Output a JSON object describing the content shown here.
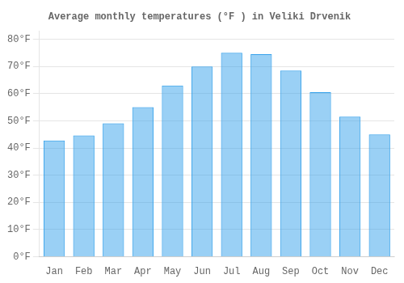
{
  "chart_data": {
    "type": "bar",
    "title": "Average monthly temperatures (°F ) in Veliki Drvenik",
    "categories": [
      "Jan",
      "Feb",
      "Mar",
      "Apr",
      "May",
      "Jun",
      "Jul",
      "Aug",
      "Sep",
      "Oct",
      "Nov",
      "Dec"
    ],
    "values": [
      42.8,
      44.6,
      49.1,
      55.0,
      63.0,
      70.0,
      75.0,
      74.5,
      68.5,
      60.5,
      51.5,
      45.0
    ],
    "ylim": [
      0,
      83
    ],
    "yticks": [
      {
        "value": 0,
        "label": "0°F"
      },
      {
        "value": 10,
        "label": "10°F"
      },
      {
        "value": 20,
        "label": "20°F"
      },
      {
        "value": 30,
        "label": "30°F"
      },
      {
        "value": 40,
        "label": "40°F"
      },
      {
        "value": 50,
        "label": "50°F"
      },
      {
        "value": 60,
        "label": "60°F"
      },
      {
        "value": 70,
        "label": "70°F"
      },
      {
        "value": 80,
        "label": "80°F"
      }
    ],
    "grid": true
  }
}
